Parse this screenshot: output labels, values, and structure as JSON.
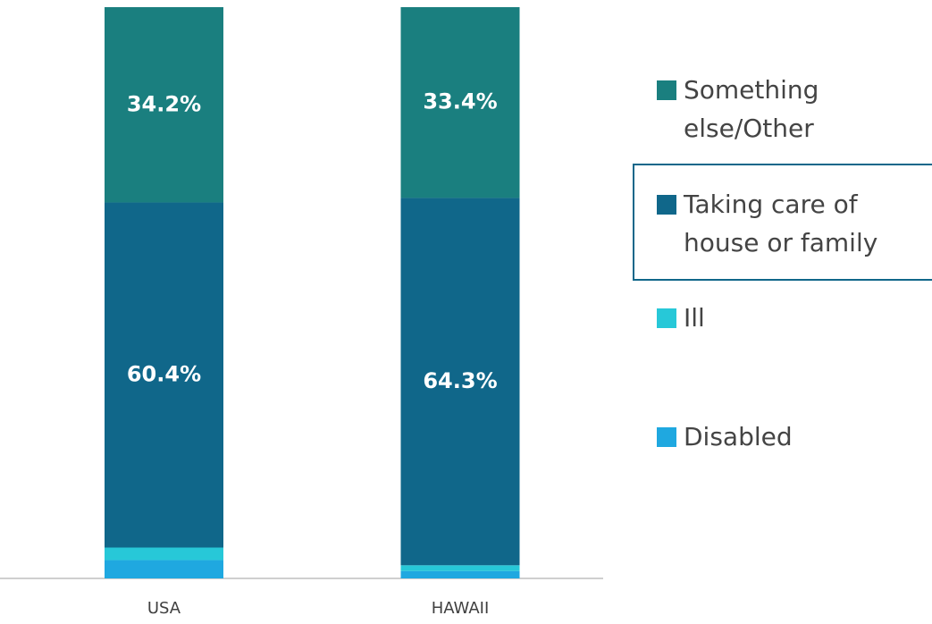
{
  "chart_data": {
    "type": "stacked_bar",
    "categories": [
      "USA",
      "HAWAII"
    ],
    "ylim": [
      0,
      100
    ],
    "series": [
      {
        "name": "Disabled",
        "color": "#1fa8e0",
        "values": [
          3.2,
          1.3
        ]
      },
      {
        "name": "Ill",
        "color": "#27c8d8",
        "values": [
          2.2,
          1.0
        ]
      },
      {
        "name": "Taking care of house or family",
        "color": "#10678a",
        "values": [
          60.4,
          64.3
        ],
        "value_labels": [
          "60.4%",
          "64.3%"
        ]
      },
      {
        "name": "Something else/Other",
        "color": "#1a7f7f",
        "values": [
          34.2,
          33.4
        ],
        "value_labels": [
          "34.2%",
          "33.4%"
        ]
      }
    ],
    "legend": "right"
  }
}
